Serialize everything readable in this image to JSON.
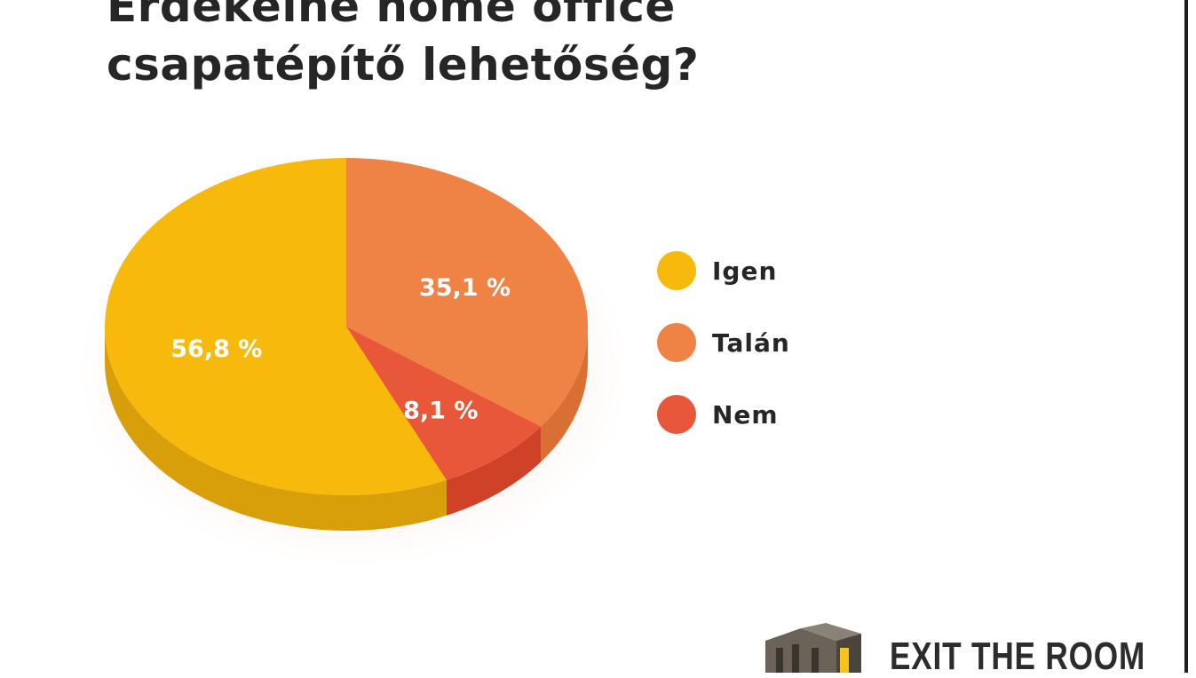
{
  "title": {
    "line1": "Érdekelne home office",
    "line2": "csapatépítő lehetőség?"
  },
  "chart_data": {
    "type": "pie",
    "title": "Érdekelne home office csapatépítő lehetőség?",
    "labels": [
      "Igen",
      "Talán",
      "Nem"
    ],
    "values": [
      56.8,
      35.1,
      8.1
    ],
    "value_labels": [
      "56,8 %",
      "35,1 %",
      "8,1 %"
    ],
    "colors": [
      "#f7b90c",
      "#ef8245",
      "#e8573a"
    ],
    "side_colors": [
      "#d99f0a",
      "#d96f33",
      "#cf4228"
    ],
    "legend_position": "right",
    "style": "3d"
  },
  "legend": [
    {
      "label": "Igen",
      "color": "#f7b90c"
    },
    {
      "label": "Talán",
      "color": "#ef8245"
    },
    {
      "label": "Nem",
      "color": "#e8573a"
    }
  ],
  "logo": {
    "text": "EXIT THE ROOM"
  }
}
